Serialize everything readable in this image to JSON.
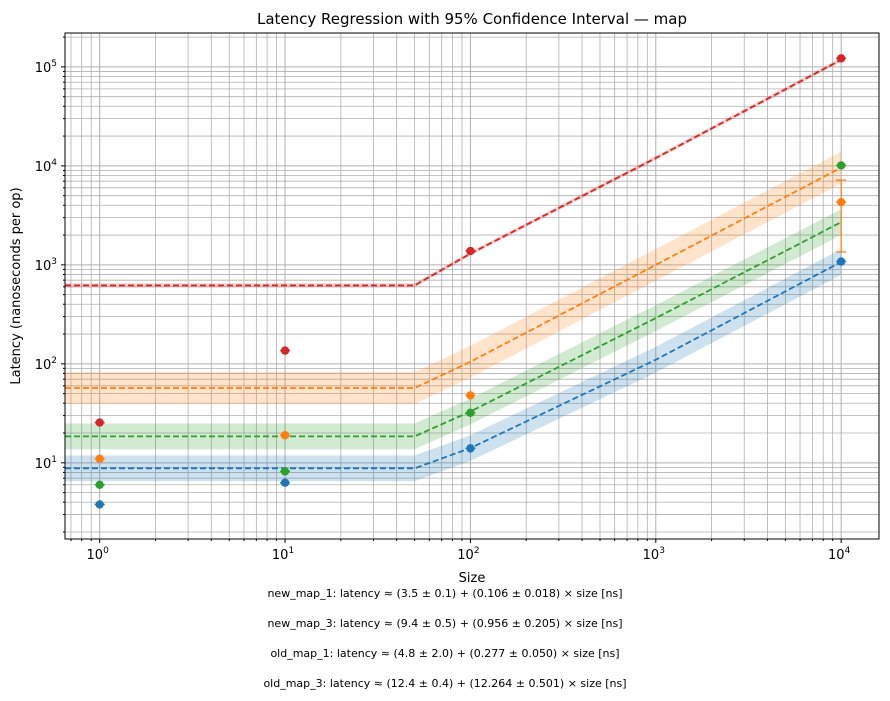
{
  "chart_data": {
    "type": "line",
    "title": "Latency Regression with 95% Confidence Interval — map",
    "xlabel": "Size",
    "ylabel": "Latency (nanoseconds per op)",
    "xscale": "log",
    "yscale": "log",
    "xlim": [
      0.65,
      16000
    ],
    "ylim": [
      1.7,
      220000
    ],
    "x_ticks": [
      1,
      10,
      100,
      1000,
      10000
    ],
    "x_tick_labels": [
      {
        "base": "10",
        "exp": "0"
      },
      {
        "base": "10",
        "exp": "1"
      },
      {
        "base": "10",
        "exp": "2"
      },
      {
        "base": "10",
        "exp": "3"
      },
      {
        "base": "10",
        "exp": "4"
      }
    ],
    "y_ticks": [
      10,
      100,
      1000,
      10000,
      100000
    ],
    "y_tick_labels": [
      {
        "base": "10",
        "exp": "1"
      },
      {
        "base": "10",
        "exp": "2"
      },
      {
        "base": "10",
        "exp": "3"
      },
      {
        "base": "10",
        "exp": "4"
      },
      {
        "base": "10",
        "exp": "5"
      }
    ],
    "grid": true,
    "legend": "none",
    "series": [
      {
        "color": "#1f77b4",
        "points": [
          {
            "x": 1,
            "y": 3.8
          },
          {
            "x": 10,
            "y": 6.3
          },
          {
            "x": 100,
            "y": 14
          },
          {
            "x": 10000,
            "y": 1080
          }
        ],
        "fit": [
          {
            "x": 0.65,
            "y": 8.8
          },
          {
            "x": 50,
            "y": 8.8
          },
          {
            "x": 100,
            "y": 14.1
          },
          {
            "x": 1000,
            "y": 110
          },
          {
            "x": 10000,
            "y": 1070
          }
        ],
        "ci": 0.13
      },
      {
        "color": "#ff7f0e",
        "points": [
          {
            "x": 1,
            "y": 11
          },
          {
            "x": 10,
            "y": 19
          },
          {
            "x": 100,
            "y": 48
          },
          {
            "x": 10000,
            "y": 4300
          }
        ],
        "errorbars": [
          {
            "x": 10000,
            "low": 1350,
            "high": 7200
          }
        ],
        "fit": [
          {
            "x": 0.65,
            "y": 57
          },
          {
            "x": 50,
            "y": 57
          },
          {
            "x": 100,
            "y": 105
          },
          {
            "x": 1000,
            "y": 1000
          },
          {
            "x": 10000,
            "y": 9600
          }
        ],
        "ci": 0.16
      },
      {
        "color": "#2ca02c",
        "points": [
          {
            "x": 1,
            "y": 6
          },
          {
            "x": 10,
            "y": 8.2
          },
          {
            "x": 100,
            "y": 32
          },
          {
            "x": 10000,
            "y": 10100
          }
        ],
        "fit": [
          {
            "x": 0.65,
            "y": 18.5
          },
          {
            "x": 50,
            "y": 18.5
          },
          {
            "x": 100,
            "y": 33
          },
          {
            "x": 1000,
            "y": 290
          },
          {
            "x": 10000,
            "y": 2700
          }
        ],
        "ci": 0.13
      },
      {
        "color": "#d62728",
        "points": [
          {
            "x": 1,
            "y": 25.5
          },
          {
            "x": 10,
            "y": 136
          },
          {
            "x": 100,
            "y": 1380
          },
          {
            "x": 10000,
            "y": 122000
          }
        ],
        "fit": [
          {
            "x": 0.65,
            "y": 620
          },
          {
            "x": 50,
            "y": 620
          },
          {
            "x": 100,
            "y": 1300
          },
          {
            "x": 1000,
            "y": 12000
          },
          {
            "x": 10000,
            "y": 118000
          }
        ],
        "ci": 0.02
      }
    ],
    "annotations": [
      "new_map_1: latency ≈ (3.5 ± 0.1) + (0.106 ± 0.018) × size [ns]",
      "new_map_3: latency ≈ (9.4 ± 0.5) + (0.956 ± 0.205) × size [ns]",
      "old_map_1: latency ≈ (4.8 ± 2.0) + (0.277 ± 0.050) × size [ns]",
      "old_map_3: latency ≈ (12.4 ± 0.4) + (12.264 ± 0.501) × size [ns]"
    ]
  }
}
